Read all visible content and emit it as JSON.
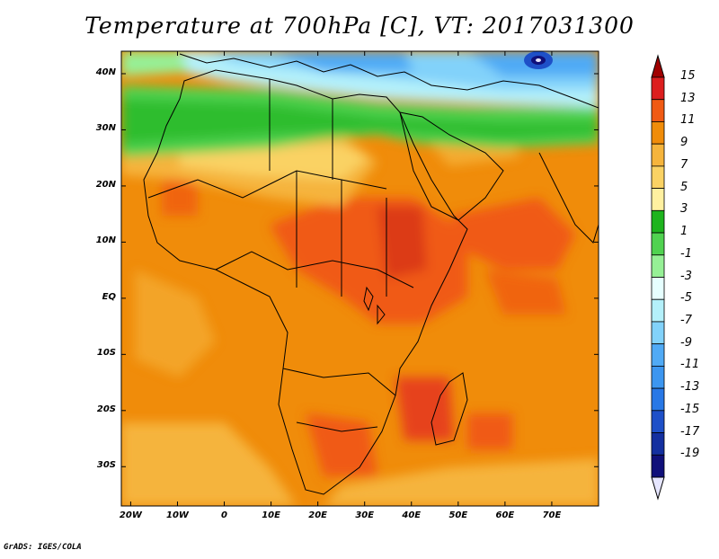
{
  "title": "Temperature at 700hPa [C], VT: 2017031300",
  "credit": "GrADS: IGES/COLA",
  "map": {
    "lat_labels": [
      "40N",
      "30N",
      "20N",
      "10N",
      "EQ",
      "10S",
      "20S",
      "30S"
    ],
    "lat_values": [
      40,
      30,
      20,
      10,
      0,
      -10,
      -20,
      -30
    ],
    "lon_labels": [
      "20W",
      "10W",
      "0",
      "10E",
      "20E",
      "30E",
      "40E",
      "50E",
      "60E",
      "70E"
    ],
    "lon_values": [
      -20,
      -10,
      0,
      10,
      20,
      30,
      40,
      50,
      60,
      70
    ],
    "lat_range": [
      -37,
      44
    ],
    "lon_range": [
      -22,
      80
    ]
  },
  "colorbar": {
    "labels": [
      "15",
      "13",
      "11",
      "9",
      "7",
      "5",
      "3",
      "1",
      "-1",
      "-3",
      "-5",
      "-7",
      "-9",
      "-11",
      "-13",
      "-15",
      "-17",
      "-19"
    ],
    "colors": [
      "#a00000",
      "#dc1e1e",
      "#f05a14",
      "#f08c0a",
      "#f5b43c",
      "#fad264",
      "#fff0a0",
      "#1eb41e",
      "#50d250",
      "#96f096",
      "#e6ffff",
      "#b4f0fa",
      "#82d2fa",
      "#50aaf5",
      "#3c96f0",
      "#2878e6",
      "#1e50c8",
      "#1430a0",
      "#10107a",
      "#e6e6ff"
    ]
  }
}
